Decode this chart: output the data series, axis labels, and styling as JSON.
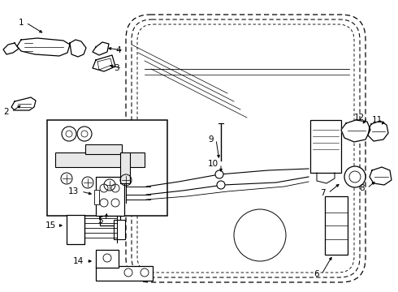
{
  "bg_color": "#ffffff",
  "fig_width": 4.9,
  "fig_height": 3.6,
  "dpi": 100
}
